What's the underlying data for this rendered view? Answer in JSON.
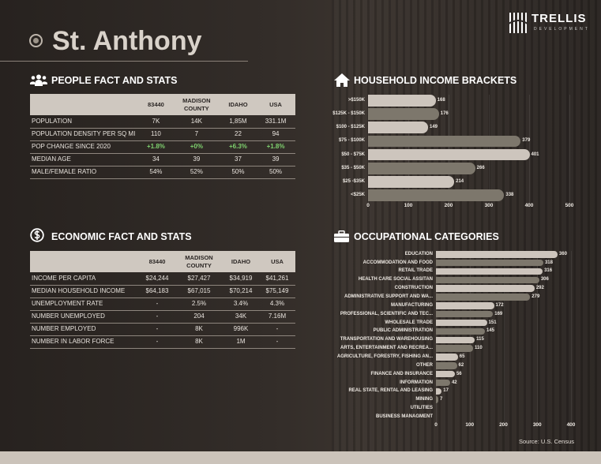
{
  "title": "St. Anthony",
  "logo": {
    "name": "TRELLIS",
    "sub": "DEVELOPMENT"
  },
  "people": {
    "heading": "PEOPLE FACT AND STATS",
    "columns": [
      "",
      "83440",
      "MADISON COUNTY",
      "IDAHO",
      "USA"
    ],
    "rows": [
      {
        "label": "POPULATION",
        "values": [
          "7K",
          "14K",
          "1,85M",
          "331.1M"
        ]
      },
      {
        "label": "POPULATION DENSITY PER SQ MI",
        "values": [
          "110",
          "7",
          "22",
          "94"
        ]
      },
      {
        "label": "POP CHANGE SINCE 2020",
        "values": [
          "+1.8%",
          "+0%",
          "+6.3%",
          "+1.8%"
        ],
        "highlight": "#7fd26f"
      },
      {
        "label": "MEDIAN AGE",
        "values": [
          "34",
          "39",
          "37",
          "39"
        ]
      },
      {
        "label": "MALE/FEMALE RATIO",
        "values": [
          "54%",
          "52%",
          "50%",
          "50%"
        ]
      }
    ]
  },
  "economic": {
    "heading": "ECONOMIC FACT AND STATS",
    "columns": [
      "",
      "83440",
      "MADISON COUNTY",
      "IDAHO",
      "USA"
    ],
    "rows": [
      {
        "label": "INCOME PER CAPITA",
        "values": [
          "$24,244",
          "$27,427",
          "$34,919",
          "$41,261"
        ]
      },
      {
        "label": "MEDIAN HOUSEHOLD INCOME",
        "values": [
          "$64,183",
          "$67,015",
          "$70,214",
          "$75,149"
        ]
      },
      {
        "label": "UNEMPLOYMENT RATE",
        "values": [
          "-",
          "2.5%",
          "3.4%",
          "4.3%"
        ]
      },
      {
        "label": "NUMBER UNEMPLOYED",
        "values": [
          "-",
          "204",
          "34K",
          "7.16M"
        ]
      },
      {
        "label": "NUMBER EMPLOYED",
        "values": [
          "-",
          "8K",
          "996K",
          "-"
        ]
      },
      {
        "label": "NUMBER IN LABOR FORCE",
        "values": [
          "-",
          "8K",
          "1M",
          "-"
        ]
      }
    ]
  },
  "chart_data": [
    {
      "type": "bar",
      "orientation": "horizontal",
      "title": "HOUSEHOLD INCOME BRACKETS",
      "categories": [
        ">$150K",
        "$125K - $150K",
        "$100 - $125K",
        "$75 - $100K",
        "$50 - $75K",
        "$35 - $50K",
        "$25 -$35K",
        "<$25K"
      ],
      "values": [
        168,
        176,
        149,
        379,
        401,
        266,
        214,
        338
      ],
      "xlim": [
        0,
        500
      ],
      "xticks": [
        "0",
        "100",
        "200",
        "300",
        "400",
        "500"
      ],
      "grid": true,
      "colors": [
        "#cdc5bd",
        "#7d776c"
      ]
    },
    {
      "type": "bar",
      "orientation": "horizontal",
      "title": "OCCUPATIONAL CATEGORIES",
      "categories": [
        "EDUCATION",
        "ACCOMMODATION AND FOOD",
        "RETAIL TRADE",
        "HEALTH CARE SOCIAL ASSITAN",
        "CONSTRUCTION",
        "ADMINISTRATIVE SUPPORT AND WA...",
        "MANUFACTURING",
        "PROFESSIONAL, SCIENTIFIC AND TEC...",
        "WHOLESALE TRADE",
        "PUBLIC ADMINISTRATION",
        "TRANSPORTATION AND WAREHOUSING",
        "ARTS, ENTERTAINMENT AND RECREA...",
        "AGRICULTURE, FORESTRY, FISHING AN...",
        "OTHER",
        "FINANCE AND INSURANCE",
        "INFORMATION",
        "REAL STATE, RENTAL AND LEASING",
        "MINING",
        "UTILITIES",
        "BUSINESS MANAGMENT"
      ],
      "values": [
        360,
        318,
        316,
        306,
        292,
        279,
        172,
        169,
        151,
        145,
        115,
        110,
        65,
        62,
        56,
        42,
        17,
        7,
        null,
        null
      ],
      "xlim": [
        0,
        400
      ],
      "xticks": [
        "0",
        "100",
        "200",
        "300",
        "400"
      ],
      "grid": true,
      "colors": [
        "#cdc5bd",
        "#7d776c"
      ]
    }
  ],
  "source": "Source: U.S. Census"
}
